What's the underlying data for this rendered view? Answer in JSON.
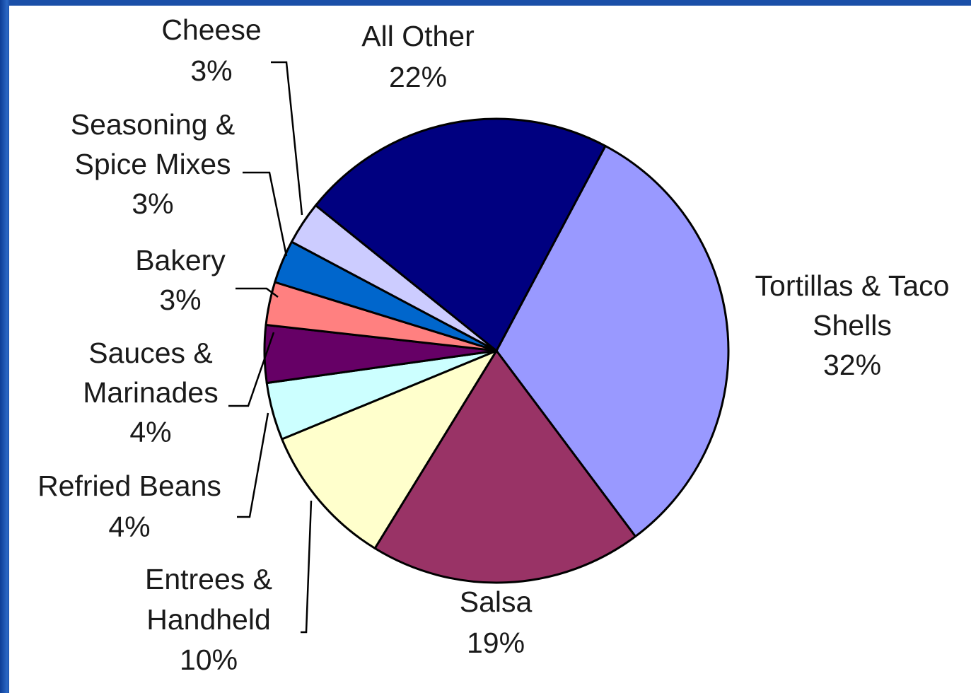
{
  "chart_data": {
    "type": "pie",
    "title": "",
    "slices": [
      {
        "label_lines": [
          "Tortillas & Taco",
          "Shells"
        ],
        "pct": "32%",
        "value": 32,
        "color": "#9999ff"
      },
      {
        "label_lines": [
          "Salsa"
        ],
        "pct": "19%",
        "value": 19,
        "color": "#993366"
      },
      {
        "label_lines": [
          "Entrees &",
          "Handheld"
        ],
        "pct": "10%",
        "value": 10,
        "color": "#ffffcc"
      },
      {
        "label_lines": [
          "Refried Beans"
        ],
        "pct": "4%",
        "value": 4,
        "color": "#ccffff"
      },
      {
        "label_lines": [
          "Sauces &",
          "Marinades"
        ],
        "pct": "4%",
        "value": 4,
        "color": "#660066"
      },
      {
        "label_lines": [
          "Bakery"
        ],
        "pct": "3%",
        "value": 3,
        "color": "#ff8080"
      },
      {
        "label_lines": [
          "Seasoning &",
          "Spice Mixes"
        ],
        "pct": "3%",
        "value": 3,
        "color": "#0066cc"
      },
      {
        "label_lines": [
          "Cheese"
        ],
        "pct": "3%",
        "value": 3,
        "color": "#ccccff"
      },
      {
        "label_lines": [
          "All Other"
        ],
        "pct": "22%",
        "value": 22,
        "color": "#000080"
      }
    ],
    "legend": "none",
    "outline_color": "#000000"
  },
  "colors": {
    "background": "#1a4fa8",
    "panel": "#ffffff",
    "text": "#1a1a1a"
  }
}
